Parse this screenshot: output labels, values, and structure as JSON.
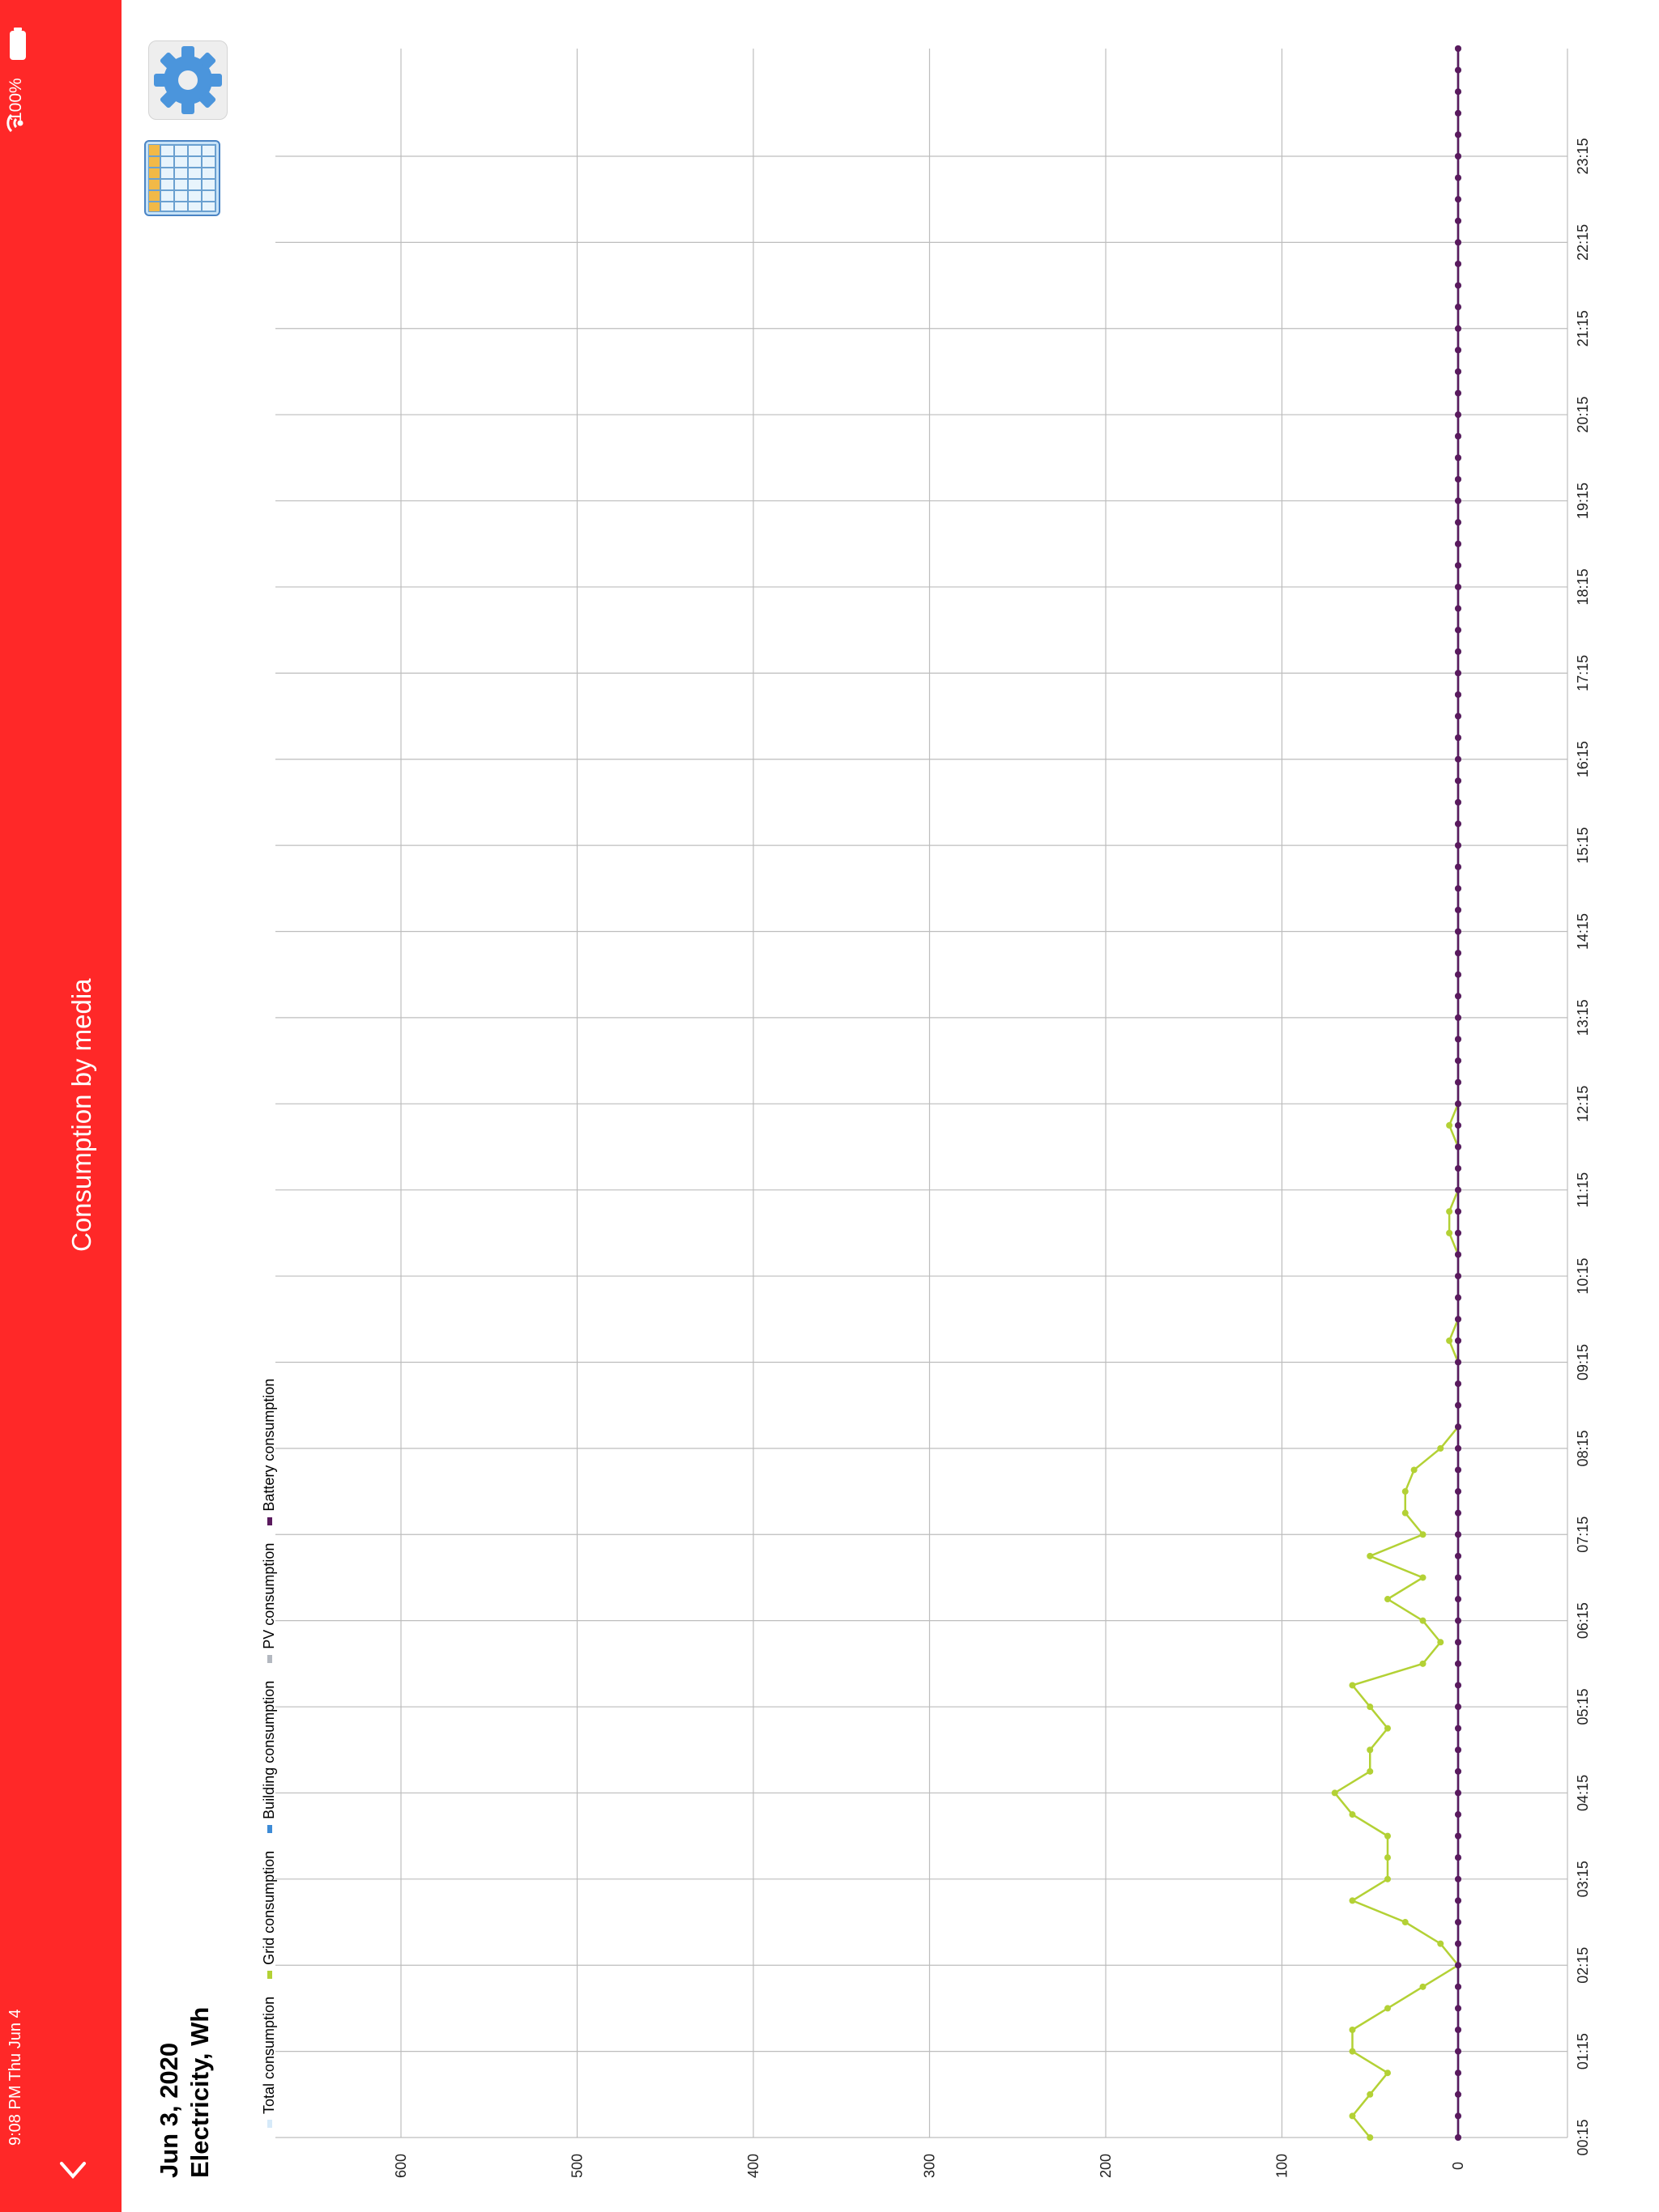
{
  "status": {
    "time": "9:08 PM  Thu Jun 4",
    "battery": "100%"
  },
  "app": {
    "title": "Consumption by media"
  },
  "icons": {
    "back": "chevron-down-icon",
    "settings": "gear-icon",
    "table": "table-grid-icon",
    "wifi": "wifi-icon",
    "battery": "battery-icon"
  },
  "heading": {
    "date": "Jun 3, 2020",
    "unit": "Electricity, Wh"
  },
  "colors": {
    "sidebar": "#ff2828",
    "total": "#d6eaf9",
    "grid": "#b3d135",
    "building": "#3d8bd6",
    "pv": "#b3b8c0",
    "battery": "#5a1a5e"
  },
  "chart_data": {
    "type": "line",
    "title": "",
    "xlabel": "",
    "ylabel": "",
    "ylim": [
      -60,
      680
    ],
    "y_ticks": [
      0,
      100,
      200,
      300,
      400,
      500,
      600
    ],
    "x_tick_labels": [
      "00:15",
      "01:15",
      "02:15",
      "03:15",
      "04:15",
      "05:15",
      "06:15",
      "07:15",
      "08:15",
      "09:15",
      "10:15",
      "11:15",
      "12:15",
      "13:15",
      "14:15",
      "15:15",
      "16:15",
      "17:15",
      "18:15",
      "19:15",
      "20:15",
      "21:15",
      "22:15",
      "23:15"
    ],
    "x_label_start_index": 0,
    "x_label_step": 4,
    "grid": true,
    "legend_position": "top-left",
    "series": [
      {
        "name": "Total consumption",
        "color": "#d6eaf9",
        "values": [
          0,
          0,
          0,
          0,
          0,
          0,
          0,
          0,
          0,
          0,
          0,
          0,
          0,
          0,
          0,
          0,
          0,
          0,
          0,
          0,
          0,
          0,
          0,
          0,
          0,
          0,
          0,
          0,
          0,
          0,
          0,
          0,
          0,
          0,
          0,
          0,
          0,
          0,
          0,
          0,
          0,
          0,
          0,
          0,
          0,
          0,
          0,
          0,
          0,
          0,
          0,
          0,
          0,
          0,
          0,
          0,
          0,
          0,
          0,
          0,
          0,
          0,
          0,
          0,
          0,
          0,
          0,
          0,
          0,
          0,
          0,
          0,
          0,
          0,
          0,
          0,
          0,
          0,
          0,
          0,
          0,
          0,
          0,
          0,
          0,
          0,
          0,
          0,
          0,
          0,
          0,
          0,
          0,
          0,
          0,
          0,
          0,
          0
        ]
      },
      {
        "name": "Grid consumption",
        "color": "#b3d135",
        "values": [
          50,
          60,
          50,
          40,
          60,
          60,
          40,
          20,
          0,
          10,
          30,
          60,
          40,
          40,
          40,
          60,
          70,
          50,
          50,
          40,
          50,
          60,
          20,
          10,
          20,
          40,
          20,
          50,
          20,
          30,
          30,
          25,
          10,
          0,
          0,
          0,
          0,
          5,
          0,
          0,
          0,
          0,
          5,
          5,
          0,
          0,
          0,
          5,
          0,
          0,
          0,
          0,
          0,
          0,
          0,
          0,
          0,
          0,
          0,
          0,
          0,
          0,
          0,
          0,
          0,
          0,
          0,
          0,
          0,
          0,
          0,
          0,
          0,
          0,
          0,
          0,
          0,
          0,
          0,
          0,
          0,
          0,
          0,
          0,
          0,
          0,
          0,
          0,
          0,
          0,
          0,
          0,
          0,
          0,
          0,
          0,
          0,
          0
        ]
      },
      {
        "name": "Building consumption",
        "color": "#3d8bd6",
        "values": [
          0,
          0,
          0,
          0,
          0,
          0,
          0,
          0,
          0,
          0,
          0,
          0,
          0,
          0,
          0,
          0,
          0,
          0,
          0,
          0,
          0,
          0,
          0,
          0,
          0,
          0,
          0,
          0,
          0,
          0,
          0,
          0,
          0,
          0,
          0,
          0,
          0,
          0,
          0,
          0,
          0,
          0,
          0,
          0,
          0,
          0,
          0,
          0,
          0,
          0,
          0,
          0,
          0,
          0,
          0,
          0,
          0,
          0,
          0,
          0,
          0,
          0,
          0,
          0,
          0,
          0,
          0,
          0,
          0,
          0,
          0,
          0,
          0,
          0,
          0,
          0,
          0,
          0,
          0,
          0,
          0,
          0,
          0,
          0,
          0,
          0,
          0,
          0,
          0,
          0,
          0,
          0,
          0,
          0,
          0,
          0,
          0,
          0
        ]
      },
      {
        "name": "PV consumption",
        "color": "#b3b8c0",
        "values": [
          0,
          0,
          0,
          0,
          0,
          0,
          0,
          0,
          0,
          0,
          0,
          0,
          0,
          0,
          0,
          0,
          0,
          0,
          0,
          0,
          0,
          0,
          0,
          0,
          0,
          0,
          0,
          0,
          0,
          0,
          0,
          0,
          0,
          0,
          0,
          0,
          0,
          0,
          0,
          0,
          0,
          0,
          0,
          0,
          0,
          0,
          0,
          0,
          0,
          0,
          0,
          0,
          0,
          0,
          0,
          0,
          0,
          0,
          0,
          0,
          0,
          0,
          0,
          0,
          0,
          0,
          0,
          0,
          0,
          0,
          0,
          0,
          0,
          0,
          0,
          0,
          0,
          0,
          0,
          0,
          0,
          0,
          0,
          0,
          0,
          0,
          0,
          0,
          0,
          0,
          0,
          0,
          0,
          0,
          0,
          0,
          0,
          0
        ]
      },
      {
        "name": "Battery consumption",
        "color": "#5a1a5e",
        "values": [
          0,
          0,
          0,
          0,
          0,
          0,
          0,
          0,
          0,
          0,
          0,
          0,
          0,
          0,
          0,
          0,
          0,
          0,
          0,
          0,
          0,
          0,
          0,
          0,
          0,
          0,
          0,
          0,
          0,
          0,
          0,
          0,
          0,
          0,
          0,
          0,
          0,
          0,
          0,
          0,
          0,
          0,
          0,
          0,
          0,
          0,
          0,
          0,
          0,
          0,
          0,
          0,
          0,
          0,
          0,
          0,
          0,
          0,
          0,
          0,
          0,
          0,
          0,
          0,
          0,
          0,
          0,
          0,
          0,
          0,
          0,
          0,
          0,
          0,
          0,
          0,
          0,
          0,
          0,
          0,
          0,
          0,
          0,
          0,
          0,
          0,
          0,
          0,
          0,
          0,
          0,
          0,
          0,
          0,
          0,
          0,
          0,
          0
        ]
      }
    ]
  }
}
